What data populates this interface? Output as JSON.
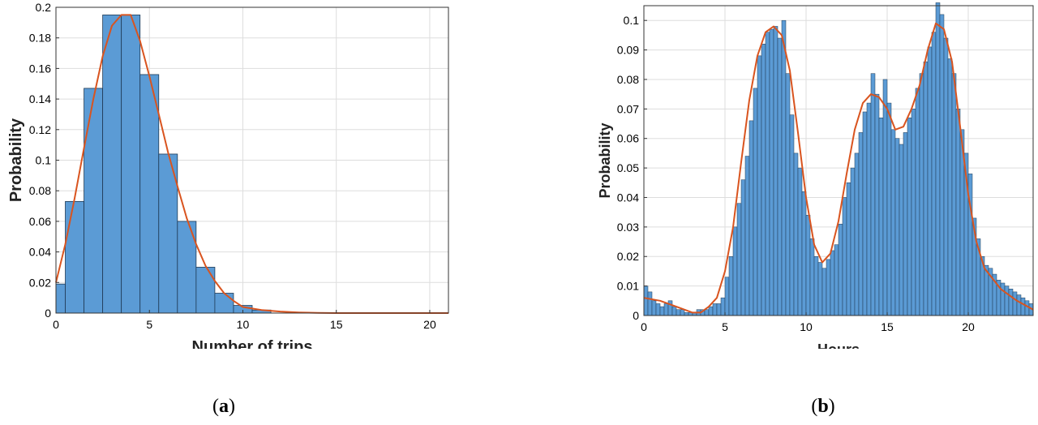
{
  "captions": {
    "a_open": "(",
    "a_letter": "a",
    "a_close": ")",
    "b_open": "(",
    "b_letter": "b",
    "b_close": ")"
  },
  "colors": {
    "bar_fill": "#5b9bd5",
    "bar_edge": "#1f3a55",
    "fit_line": "#d9541f",
    "grid": "#dddddd"
  },
  "chart_data": [
    {
      "type": "bar",
      "xlabel": "Number of trips",
      "ylabel": "Probability",
      "xlim": [
        0,
        21
      ],
      "ylim": [
        0,
        0.2
      ],
      "xticks": [
        "0",
        "5",
        "10",
        "15",
        "20"
      ],
      "yticks": [
        "0",
        "0.02",
        "0.04",
        "0.06",
        "0.08",
        "0.1",
        "0.12",
        "0.14",
        "0.16",
        "0.18",
        "0.2"
      ],
      "bin_width": 1,
      "bin_centers": [
        0,
        1,
        2,
        3,
        4,
        5,
        6,
        7,
        8,
        9,
        10,
        11,
        12,
        13,
        14,
        15,
        16,
        17,
        18,
        19,
        20
      ],
      "values": [
        0.019,
        0.073,
        0.147,
        0.195,
        0.195,
        0.156,
        0.104,
        0.06,
        0.03,
        0.013,
        0.005,
        0.002,
        0,
        0,
        0,
        0,
        0,
        0,
        0,
        0,
        0
      ],
      "fit": {
        "x": [
          0,
          0.5,
          1,
          1.5,
          2,
          2.5,
          3,
          3.5,
          4,
          4.5,
          5,
          5.5,
          6,
          6.5,
          7,
          7.5,
          8,
          8.5,
          9,
          9.5,
          10,
          11,
          12,
          13,
          14,
          15,
          17,
          19,
          21
        ],
        "y": [
          0.02,
          0.045,
          0.075,
          0.108,
          0.14,
          0.168,
          0.188,
          0.195,
          0.195,
          0.178,
          0.155,
          0.13,
          0.105,
          0.083,
          0.062,
          0.045,
          0.031,
          0.021,
          0.013,
          0.008,
          0.004,
          0.002,
          0.001,
          0.0004,
          0.0001,
          0,
          0,
          0,
          0
        ]
      },
      "grid": true
    },
    {
      "type": "bar",
      "xlabel": "Hours",
      "ylabel": "Probability",
      "xlim": [
        0,
        24
      ],
      "ylim": [
        0,
        0.105
      ],
      "xticks": [
        "0",
        "5",
        "10",
        "15",
        "20"
      ],
      "yticks": [
        "0",
        "0.01",
        "0.02",
        "0.03",
        "0.04",
        "0.05",
        "0.06",
        "0.07",
        "0.08",
        "0.09",
        "0.1"
      ],
      "bin_width": 0.25,
      "bin_starts": [
        0,
        0.25,
        0.5,
        0.75,
        1,
        1.25,
        1.5,
        1.75,
        2,
        2.25,
        2.5,
        2.75,
        3,
        3.25,
        3.5,
        3.75,
        4,
        4.25,
        4.5,
        4.75,
        5,
        5.25,
        5.5,
        5.75,
        6,
        6.25,
        6.5,
        6.75,
        7,
        7.25,
        7.5,
        7.75,
        8,
        8.25,
        8.5,
        8.75,
        9,
        9.25,
        9.5,
        9.75,
        10,
        10.25,
        10.5,
        10.75,
        11,
        11.25,
        11.5,
        11.75,
        12,
        12.25,
        12.5,
        12.75,
        13,
        13.25,
        13.5,
        13.75,
        14,
        14.25,
        14.5,
        14.75,
        15,
        15.25,
        15.5,
        15.75,
        16,
        16.25,
        16.5,
        16.75,
        17,
        17.25,
        17.5,
        17.75,
        18,
        18.25,
        18.5,
        18.75,
        19,
        19.25,
        19.5,
        19.75,
        20,
        20.25,
        20.5,
        20.75,
        21,
        21.25,
        21.5,
        21.75,
        22,
        22.25,
        22.5,
        22.75,
        23,
        23.25,
        23.5,
        23.75
      ],
      "values": [
        0.01,
        0.008,
        0.005,
        0.004,
        0.003,
        0.004,
        0.005,
        0.003,
        0.002,
        0.002,
        0.001,
        0.001,
        0.001,
        0.002,
        0.002,
        0.002,
        0.003,
        0.004,
        0.004,
        0.006,
        0.013,
        0.02,
        0.03,
        0.038,
        0.046,
        0.054,
        0.066,
        0.077,
        0.088,
        0.092,
        0.096,
        0.097,
        0.098,
        0.094,
        0.1,
        0.082,
        0.068,
        0.055,
        0.05,
        0.042,
        0.034,
        0.026,
        0.02,
        0.018,
        0.016,
        0.019,
        0.022,
        0.024,
        0.031,
        0.04,
        0.045,
        0.05,
        0.055,
        0.062,
        0.069,
        0.072,
        0.082,
        0.075,
        0.067,
        0.08,
        0.072,
        0.063,
        0.06,
        0.058,
        0.062,
        0.067,
        0.07,
        0.077,
        0.082,
        0.086,
        0.091,
        0.096,
        0.106,
        0.102,
        0.094,
        0.087,
        0.082,
        0.07,
        0.063,
        0.055,
        0.048,
        0.033,
        0.026,
        0.02,
        0.017,
        0.016,
        0.014,
        0.012,
        0.011,
        0.01,
        0.009,
        0.008,
        0.007,
        0.006,
        0.005,
        0.004
      ],
      "fit": {
        "x": [
          0,
          1,
          2,
          3,
          3.5,
          4,
          4.5,
          5,
          5.5,
          6,
          6.5,
          7,
          7.5,
          8,
          8.5,
          9,
          9.5,
          10,
          10.5,
          11,
          11.5,
          12,
          12.5,
          13,
          13.5,
          14,
          14.5,
          15,
          15.5,
          16,
          16.5,
          17,
          17.5,
          18,
          18.5,
          19,
          19.5,
          20,
          20.5,
          21,
          22,
          23,
          24
        ],
        "y": [
          0.006,
          0.005,
          0.003,
          0.001,
          0.001,
          0.003,
          0.006,
          0.015,
          0.03,
          0.052,
          0.073,
          0.088,
          0.096,
          0.098,
          0.095,
          0.083,
          0.062,
          0.04,
          0.024,
          0.018,
          0.021,
          0.032,
          0.048,
          0.063,
          0.072,
          0.075,
          0.074,
          0.07,
          0.063,
          0.064,
          0.07,
          0.078,
          0.09,
          0.099,
          0.097,
          0.086,
          0.064,
          0.041,
          0.025,
          0.016,
          0.009,
          0.005,
          0.002
        ]
      },
      "grid": true
    }
  ]
}
